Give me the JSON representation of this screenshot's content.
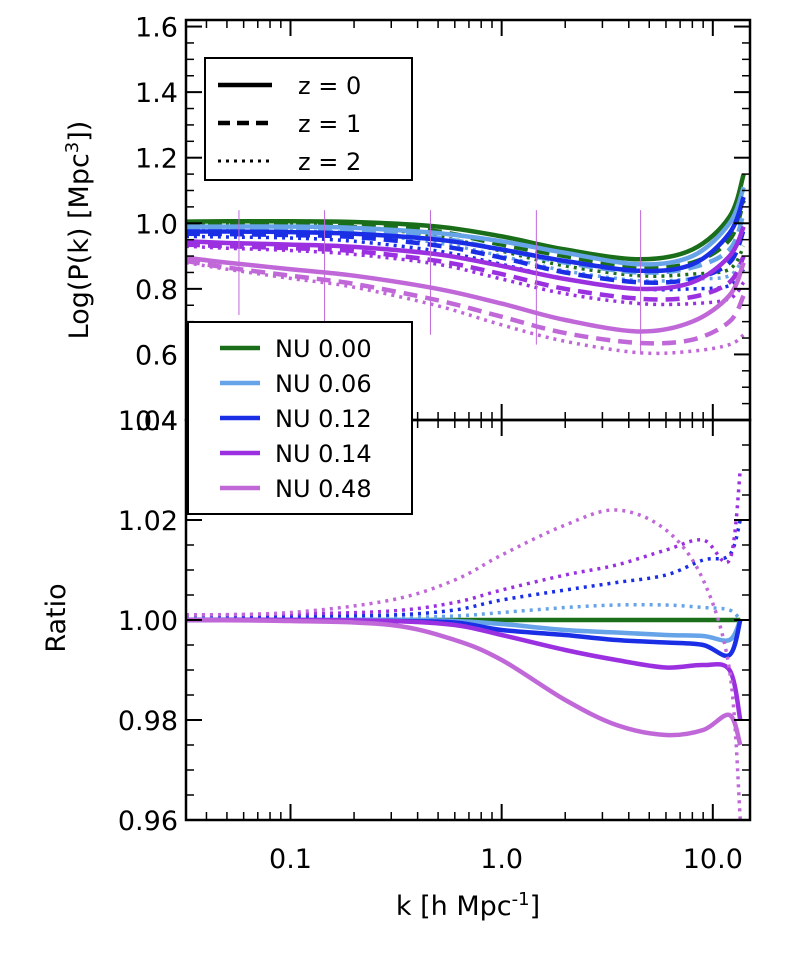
{
  "chart_data": [
    {
      "type": "line",
      "panel": "top",
      "ylabel": "Log(P(k) [Mpc",
      "ylabel_sup": "3",
      "ylabel_end": "])",
      "xscale": "log",
      "xlim": [
        0.032,
        15
      ],
      "ylim": [
        0.4,
        1.62
      ],
      "yticks": [
        0.4,
        0.6,
        0.8,
        1.0,
        1.2,
        1.4,
        1.6
      ],
      "ytick_labels": [
        "0.4",
        "0.6",
        "0.8",
        "1.0",
        "1.2",
        "1.4",
        "1.6"
      ],
      "legend": [
        {
          "label": "z = 0",
          "style": "solid"
        },
        {
          "label": "z = 1",
          "style": "dashed"
        },
        {
          "label": "z = 2",
          "style": "dotted"
        }
      ],
      "x": [
        0.032,
        0.05,
        0.1,
        0.2,
        0.5,
        1.0,
        2.0,
        4.5,
        8.0,
        12.0,
        14.0
      ],
      "series": [
        {
          "name": "NU 0.00",
          "z": 0,
          "values": [
            1.005,
            1.006,
            1.006,
            1.004,
            0.99,
            0.96,
            0.92,
            0.89,
            0.92,
            1.02,
            1.15
          ]
        },
        {
          "name": "NU 0.00",
          "z": 1,
          "values": [
            1.002,
            1.003,
            1.002,
            0.998,
            0.975,
            0.935,
            0.9,
            0.865,
            0.88,
            0.95,
            1.07
          ]
        },
        {
          "name": "NU 0.00",
          "z": 2,
          "values": [
            0.998,
            0.998,
            0.996,
            0.99,
            0.96,
            0.915,
            0.87,
            0.84,
            0.845,
            0.86,
            0.93
          ]
        },
        {
          "name": "NU 0.06",
          "z": 0,
          "values": [
            0.99,
            0.99,
            0.99,
            0.986,
            0.97,
            0.945,
            0.91,
            0.875,
            0.9,
            1.0,
            1.11
          ]
        },
        {
          "name": "NU 0.06",
          "z": 1,
          "values": [
            0.985,
            0.985,
            0.984,
            0.978,
            0.955,
            0.92,
            0.88,
            0.85,
            0.865,
            0.92,
            1.03
          ]
        },
        {
          "name": "NU 0.06",
          "z": 2,
          "values": [
            0.98,
            0.98,
            0.977,
            0.97,
            0.94,
            0.9,
            0.855,
            0.825,
            0.83,
            0.84,
            0.9
          ]
        },
        {
          "name": "NU 0.12",
          "z": 0,
          "values": [
            0.975,
            0.975,
            0.973,
            0.968,
            0.95,
            0.92,
            0.885,
            0.855,
            0.875,
            0.97,
            1.08
          ]
        },
        {
          "name": "NU 0.12",
          "z": 1,
          "values": [
            0.968,
            0.967,
            0.964,
            0.958,
            0.932,
            0.895,
            0.85,
            0.82,
            0.83,
            0.88,
            0.98
          ]
        },
        {
          "name": "NU 0.12",
          "z": 2,
          "values": [
            0.96,
            0.958,
            0.955,
            0.945,
            0.915,
            0.875,
            0.83,
            0.8,
            0.8,
            0.81,
            0.86
          ]
        },
        {
          "name": "NU 0.14",
          "z": 0,
          "values": [
            0.945,
            0.94,
            0.935,
            0.928,
            0.905,
            0.87,
            0.83,
            0.8,
            0.82,
            0.9,
            0.99
          ]
        },
        {
          "name": "NU 0.14",
          "z": 1,
          "values": [
            0.935,
            0.93,
            0.924,
            0.915,
            0.885,
            0.845,
            0.8,
            0.77,
            0.775,
            0.82,
            0.9
          ]
        },
        {
          "name": "NU 0.14",
          "z": 2,
          "values": [
            0.93,
            0.924,
            0.917,
            0.905,
            0.875,
            0.83,
            0.785,
            0.755,
            0.755,
            0.77,
            0.82
          ]
        },
        {
          "name": "NU 0.48",
          "z": 0,
          "values": [
            0.895,
            0.88,
            0.86,
            0.84,
            0.8,
            0.755,
            0.705,
            0.67,
            0.7,
            0.78,
            0.88
          ]
        },
        {
          "name": "NU 0.48",
          "z": 1,
          "values": [
            0.885,
            0.865,
            0.84,
            0.815,
            0.765,
            0.715,
            0.665,
            0.635,
            0.645,
            0.7,
            0.78
          ]
        },
        {
          "name": "NU 0.48",
          "z": 2,
          "values": [
            0.88,
            0.86,
            0.832,
            0.805,
            0.748,
            0.69,
            0.64,
            0.605,
            0.61,
            0.63,
            0.66
          ]
        }
      ],
      "errorbar_x": [
        0.057,
        0.145,
        0.46,
        1.46,
        4.55
      ]
    },
    {
      "type": "line",
      "panel": "bottom",
      "ylabel": "Ratio",
      "xlabel": "k [h Mpc",
      "xlabel_sup": "-1",
      "xlabel_end": "]",
      "xscale": "log",
      "xlim": [
        0.032,
        15
      ],
      "ylim": [
        0.96,
        1.04
      ],
      "xticks": [
        0.1,
        1.0,
        10.0
      ],
      "xtick_labels": [
        "0.1",
        "1.0",
        "10.0"
      ],
      "yticks": [
        0.96,
        0.98,
        1.0,
        1.02,
        1.04
      ],
      "ytick_labels": [
        "0.96",
        "0.98",
        "1.00",
        "1.02",
        "1.04"
      ],
      "legend": [
        {
          "label": "NU 0.00",
          "color": "#1a6e1a"
        },
        {
          "label": "NU 0.06",
          "color": "#66a3e8"
        },
        {
          "label": "NU 0.12",
          "color": "#1a2ee6"
        },
        {
          "label": "NU 0.14",
          "color": "#9b30e0"
        },
        {
          "label": "NU 0.48",
          "color": "#c068d8"
        }
      ],
      "x": [
        0.032,
        0.1,
        0.3,
        0.6,
        1.0,
        2.0,
        3.5,
        6.0,
        9.0,
        12.0,
        13.5
      ],
      "series": [
        {
          "name": "NU 0.00",
          "z": 0,
          "values": [
            1.0,
            1.0,
            1.0,
            1.0,
            1.0,
            1.0,
            1.0,
            1.0,
            1.0,
            1.0,
            1.0
          ]
        },
        {
          "name": "NU 0.06",
          "z": 0,
          "values": [
            1.0,
            1.0,
            1.0,
            0.9998,
            0.9992,
            0.998,
            0.9975,
            0.997,
            0.9968,
            0.996,
            1.0
          ]
        },
        {
          "name": "NU 0.06",
          "z": 2,
          "values": [
            1.0005,
            1.0003,
            1.0005,
            1.0008,
            1.0015,
            1.0025,
            1.003,
            1.003,
            1.0025,
            1.002,
            1.0
          ]
        },
        {
          "name": "NU 0.12",
          "z": 0,
          "values": [
            1.0,
            1.0,
            0.9998,
            0.9995,
            0.998,
            0.997,
            0.996,
            0.9955,
            0.995,
            0.993,
            1.0
          ]
        },
        {
          "name": "NU 0.12",
          "z": 2,
          "values": [
            1.001,
            1.0008,
            1.001,
            1.002,
            1.004,
            1.006,
            1.0075,
            1.009,
            1.012,
            1.013,
            1.02
          ]
        },
        {
          "name": "NU 0.14",
          "z": 0,
          "values": [
            1.0,
            1.0,
            0.9998,
            0.999,
            0.997,
            0.994,
            0.992,
            0.9905,
            0.991,
            0.99,
            0.98
          ]
        },
        {
          "name": "NU 0.14",
          "z": 2,
          "values": [
            1.001,
            1.0012,
            1.0018,
            1.0035,
            1.006,
            1.009,
            1.011,
            1.014,
            1.016,
            1.012,
            1.03
          ]
        },
        {
          "name": "NU 0.48",
          "z": 0,
          "values": [
            1.0,
            0.9998,
            0.999,
            0.996,
            0.992,
            0.984,
            0.979,
            0.977,
            0.978,
            0.981,
            0.975
          ]
        },
        {
          "name": "NU 0.48",
          "z": 2,
          "values": [
            1.001,
            1.0015,
            1.004,
            1.008,
            1.013,
            1.019,
            1.022,
            1.018,
            1.008,
            0.99,
            0.96
          ]
        }
      ]
    }
  ],
  "colors": {
    "NU 0.00": "#1a6e1a",
    "NU 0.06": "#66a3e8",
    "NU 0.12": "#1a2ee6",
    "NU 0.14": "#9b30e0",
    "NU 0.48": "#c068d8"
  }
}
